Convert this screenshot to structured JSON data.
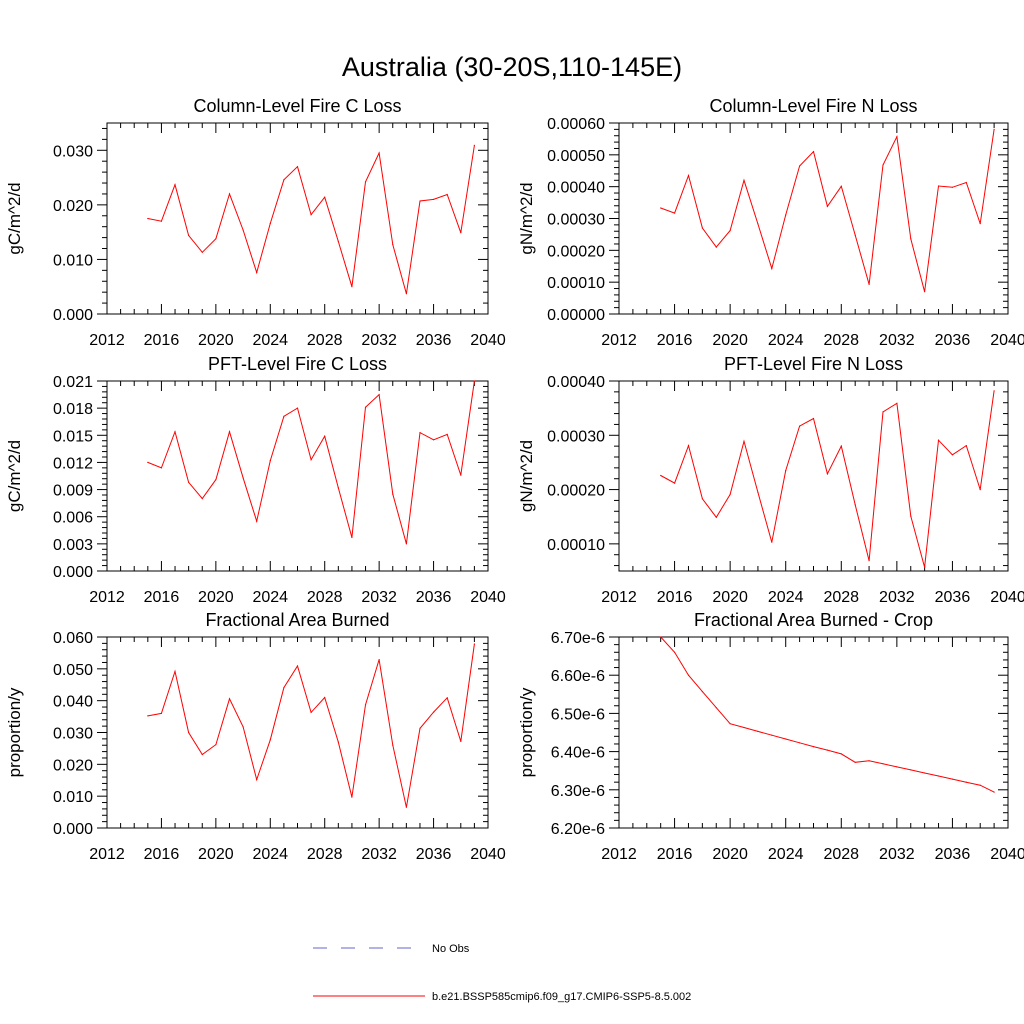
{
  "figure": {
    "title": "Australia (30-20S,110-145E)"
  },
  "colors": {
    "model": "#ff0000",
    "obs": "#6666cc",
    "axis": "#000000"
  },
  "legend": {
    "obs_label": "No Obs",
    "model_label": "b.e21.BSSP585cmip6.f09_g17.CMIP6-SSP5-8.5.002"
  },
  "chart_data": [
    {
      "type": "line",
      "title": "Column-Level Fire C Loss",
      "ylabel": "gC/m^2/d",
      "xlim": [
        2012,
        2040
      ],
      "ylim": [
        0,
        0.035
      ],
      "xticks": [
        2012,
        2016,
        2020,
        2024,
        2028,
        2032,
        2036,
        2040
      ],
      "xtick_labels": [
        "2012",
        "2016",
        "2020",
        "2024",
        "2028",
        "2032",
        "2036",
        "2040"
      ],
      "yticks": [
        0,
        0.01,
        0.02,
        0.03
      ],
      "ytick_labels": [
        "0.000",
        "0.010",
        "0.020",
        "0.030"
      ],
      "x": [
        2015,
        2016,
        2017,
        2018,
        2019,
        2020,
        2021,
        2022,
        2023,
        2024,
        2025,
        2026,
        2027,
        2028,
        2029,
        2030,
        2031,
        2032,
        2033,
        2034,
        2035,
        2036,
        2037,
        2038,
        2039
      ],
      "series": [
        {
          "name": "b.e21.BSSP585cmip6.f09_g17.CMIP6-SSP5-8.5.002",
          "values": [
            0.0175,
            0.017,
            0.0237,
            0.0144,
            0.0113,
            0.0138,
            0.022,
            0.0154,
            0.0076,
            0.0166,
            0.0246,
            0.027,
            0.0182,
            0.0214,
            0.0133,
            0.005,
            0.0242,
            0.0295,
            0.0127,
            0.0037,
            0.0207,
            0.021,
            0.0219,
            0.0149,
            0.0309
          ]
        }
      ]
    },
    {
      "type": "line",
      "title": "Column-Level Fire N Loss",
      "ylabel": "gN/m^2/d",
      "xlim": [
        2012,
        2040
      ],
      "ylim": [
        0,
        0.0006
      ],
      "xticks": [
        2012,
        2016,
        2020,
        2024,
        2028,
        2032,
        2036,
        2040
      ],
      "xtick_labels": [
        "2012",
        "2016",
        "2020",
        "2024",
        "2028",
        "2032",
        "2036",
        "2040"
      ],
      "yticks": [
        0,
        0.0001,
        0.0002,
        0.0003,
        0.0004,
        0.0005,
        0.0006
      ],
      "ytick_labels": [
        "0.00000",
        "0.00010",
        "0.00020",
        "0.00030",
        "0.00040",
        "0.00050",
        "0.00060"
      ],
      "x": [
        2015,
        2016,
        2017,
        2018,
        2019,
        2020,
        2021,
        2022,
        2023,
        2024,
        2025,
        2026,
        2027,
        2028,
        2029,
        2030,
        2031,
        2032,
        2033,
        2034,
        2035,
        2036,
        2037,
        2038,
        2039
      ],
      "series": [
        {
          "name": "b.e21.BSSP585cmip6.f09_g17.CMIP6-SSP5-8.5.002",
          "values": [
            0.000333,
            0.000317,
            0.000435,
            0.00027,
            0.00021,
            0.000262,
            0.00042,
            0.000283,
            0.000143,
            0.000311,
            0.000465,
            0.00051,
            0.000338,
            0.000401,
            0.000248,
            9.3e-05,
            0.000468,
            0.000557,
            0.000236,
            7e-05,
            0.000402,
            0.000398,
            0.000413,
            0.000284,
            0.00058
          ]
        }
      ]
    },
    {
      "type": "line",
      "title": "PFT-Level Fire C Loss",
      "ylabel": "gC/m^2/d",
      "xlim": [
        2012,
        2040
      ],
      "ylim": [
        0,
        0.021
      ],
      "xticks": [
        2012,
        2016,
        2020,
        2024,
        2028,
        2032,
        2036,
        2040
      ],
      "xtick_labels": [
        "2012",
        "2016",
        "2020",
        "2024",
        "2028",
        "2032",
        "2036",
        "2040"
      ],
      "yticks": [
        0,
        0.003,
        0.006,
        0.009,
        0.012,
        0.015,
        0.018,
        0.021
      ],
      "ytick_labels": [
        "0.000",
        "0.003",
        "0.006",
        "0.009",
        "0.012",
        "0.015",
        "0.018",
        "0.021"
      ],
      "x": [
        2015,
        2016,
        2017,
        2018,
        2019,
        2020,
        2021,
        2022,
        2023,
        2024,
        2025,
        2026,
        2027,
        2028,
        2029,
        2030,
        2031,
        2032,
        2033,
        2034,
        2035,
        2036,
        2037,
        2038,
        2039
      ],
      "series": [
        {
          "name": "b.e21.BSSP585cmip6.f09_g17.CMIP6-SSP5-8.5.002",
          "values": [
            0.012,
            0.0114,
            0.0154,
            0.0098,
            0.008,
            0.0101,
            0.0154,
            0.0103,
            0.0055,
            0.0122,
            0.0171,
            0.018,
            0.0123,
            0.0149,
            0.0092,
            0.0037,
            0.0181,
            0.0195,
            0.0085,
            0.003,
            0.0153,
            0.0145,
            0.0151,
            0.0106,
            0.021
          ]
        }
      ]
    },
    {
      "type": "line",
      "title": "PFT-Level Fire N Loss",
      "ylabel": "gN/m^2/d",
      "xlim": [
        2012,
        2040
      ],
      "ylim": [
        5e-05,
        0.0004
      ],
      "xticks": [
        2012,
        2016,
        2020,
        2024,
        2028,
        2032,
        2036,
        2040
      ],
      "xtick_labels": [
        "2012",
        "2016",
        "2020",
        "2024",
        "2028",
        "2032",
        "2036",
        "2040"
      ],
      "yticks": [
        0.0001,
        0.0002,
        0.0003,
        0.0004
      ],
      "ytick_labels": [
        "0.00010",
        "0.00020",
        "0.00030",
        "0.00040"
      ],
      "x": [
        2015,
        2016,
        2017,
        2018,
        2019,
        2020,
        2021,
        2022,
        2023,
        2024,
        2025,
        2026,
        2027,
        2028,
        2029,
        2030,
        2031,
        2032,
        2033,
        2034,
        2035,
        2036,
        2037,
        2038,
        2039
      ],
      "series": [
        {
          "name": "b.e21.BSSP585cmip6.f09_g17.CMIP6-SSP5-8.5.002",
          "values": [
            0.000226,
            0.000212,
            0.000281,
            0.000183,
            0.000149,
            0.000191,
            0.000289,
            0.000195,
            0.000103,
            0.000235,
            0.000317,
            0.000331,
            0.000229,
            0.00028,
            0.000172,
            6.9e-05,
            0.000343,
            0.000359,
            0.000151,
            5.7e-05,
            0.000291,
            0.000264,
            0.000281,
            0.0002,
            0.000382
          ]
        }
      ]
    },
    {
      "type": "line",
      "title": "Fractional Area Burned",
      "ylabel": "proportion/y",
      "xlim": [
        2012,
        2040
      ],
      "ylim": [
        0,
        0.06
      ],
      "xticks": [
        2012,
        2016,
        2020,
        2024,
        2028,
        2032,
        2036,
        2040
      ],
      "xtick_labels": [
        "2012",
        "2016",
        "2020",
        "2024",
        "2028",
        "2032",
        "2036",
        "2040"
      ],
      "yticks": [
        0,
        0.01,
        0.02,
        0.03,
        0.04,
        0.05,
        0.06
      ],
      "ytick_labels": [
        "0.000",
        "0.010",
        "0.020",
        "0.030",
        "0.040",
        "0.050",
        "0.060"
      ],
      "x": [
        2015,
        2016,
        2017,
        2018,
        2019,
        2020,
        2021,
        2022,
        2023,
        2024,
        2025,
        2026,
        2027,
        2028,
        2029,
        2030,
        2031,
        2032,
        2033,
        2034,
        2035,
        2036,
        2037,
        2038,
        2039
      ],
      "series": [
        {
          "name": "b.e21.BSSP585cmip6.f09_g17.CMIP6-SSP5-8.5.002",
          "values": [
            0.0352,
            0.036,
            0.0492,
            0.03,
            0.0231,
            0.0262,
            0.0406,
            0.0318,
            0.0152,
            0.0277,
            0.0441,
            0.0509,
            0.0363,
            0.041,
            0.027,
            0.0097,
            0.0387,
            0.0529,
            0.026,
            0.0065,
            0.0313,
            0.0364,
            0.0409,
            0.0272,
            0.0578
          ]
        }
      ]
    },
    {
      "type": "line",
      "title": "Fractional Area Burned - Crop",
      "ylabel": "proportion/y",
      "xlim": [
        2012,
        2040
      ],
      "ylim": [
        6.2e-06,
        6.7e-06
      ],
      "xticks": [
        2012,
        2016,
        2020,
        2024,
        2028,
        2032,
        2036,
        2040
      ],
      "xtick_labels": [
        "2012",
        "2016",
        "2020",
        "2024",
        "2028",
        "2032",
        "2036",
        "2040"
      ],
      "yticks": [
        6.2e-06,
        6.3e-06,
        6.4e-06,
        6.5e-06,
        6.6e-06,
        6.7e-06
      ],
      "ytick_labels": [
        "6.20e-6",
        "6.30e-6",
        "6.40e-6",
        "6.50e-6",
        "6.60e-6",
        "6.70e-6"
      ],
      "x": [
        2015,
        2016,
        2017,
        2018,
        2019,
        2020,
        2021,
        2022,
        2023,
        2024,
        2025,
        2026,
        2027,
        2028,
        2029,
        2030,
        2031,
        2032,
        2033,
        2034,
        2035,
        2036,
        2037,
        2038,
        2039
      ],
      "series": [
        {
          "name": "b.e21.BSSP585cmip6.f09_g17.CMIP6-SSP5-8.5.002",
          "values": [
            6.7e-06,
            6.66e-06,
            6.6e-06,
            6.557e-06,
            6.515e-06,
            6.473e-06,
            6.463e-06,
            6.453e-06,
            6.443e-06,
            6.433e-06,
            6.423e-06,
            6.413e-06,
            6.404e-06,
            6.394e-06,
            6.372e-06,
            6.376e-06,
            6.368e-06,
            6.36e-06,
            6.352e-06,
            6.344e-06,
            6.336e-06,
            6.328e-06,
            6.32e-06,
            6.312e-06,
            6.294e-06
          ]
        }
      ]
    }
  ]
}
